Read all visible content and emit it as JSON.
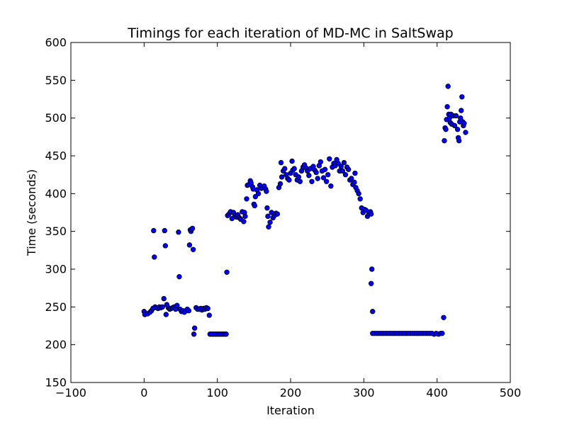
{
  "chart_data": {
    "type": "scatter",
    "title": "Timings for each iteration of MD-MC in SaltSwap",
    "xlabel": "Iteration",
    "ylabel": "Time (seconds)",
    "xlim": [
      -100,
      500
    ],
    "ylim": [
      150,
      600
    ],
    "xticks": [
      -100,
      0,
      100,
      200,
      300,
      400,
      500
    ],
    "yticks": [
      150,
      200,
      250,
      300,
      350,
      400,
      450,
      500,
      550,
      600
    ],
    "xtick_labels": [
      "−100",
      "0",
      "100",
      "200",
      "300",
      "400",
      "500"
    ],
    "ytick_labels": [
      "150",
      "200",
      "250",
      "300",
      "350",
      "400",
      "450",
      "500",
      "550",
      "600"
    ],
    "grid": false,
    "legend": "none",
    "marker_color": "#0000ff",
    "marker_edge_color": "#000000",
    "series": [
      {
        "points": [
          [
            0,
            244
          ],
          [
            1,
            240
          ],
          [
            3,
            241
          ],
          [
            5,
            241
          ],
          [
            8,
            243
          ],
          [
            10,
            245
          ],
          [
            12,
            248
          ],
          [
            13,
            351
          ],
          [
            14,
            316
          ],
          [
            15,
            250
          ],
          [
            17,
            249
          ],
          [
            19,
            248
          ],
          [
            21,
            250
          ],
          [
            23,
            249
          ],
          [
            25,
            250
          ],
          [
            27,
            261
          ],
          [
            28,
            351
          ],
          [
            29,
            331
          ],
          [
            30,
            240
          ],
          [
            31,
            253
          ],
          [
            33,
            249
          ],
          [
            35,
            247
          ],
          [
            37,
            248
          ],
          [
            39,
            249
          ],
          [
            41,
            250
          ],
          [
            43,
            247
          ],
          [
            45,
            252
          ],
          [
            47,
            349
          ],
          [
            48,
            290
          ],
          [
            49,
            247
          ],
          [
            51,
            244
          ],
          [
            53,
            245
          ],
          [
            55,
            243
          ],
          [
            57,
            245
          ],
          [
            59,
            247
          ],
          [
            61,
            245
          ],
          [
            62,
            332
          ],
          [
            63,
            352
          ],
          [
            64,
            350
          ],
          [
            65,
            353
          ],
          [
            66,
            354
          ],
          [
            67,
            326
          ],
          [
            68,
            214
          ],
          [
            69,
            222
          ],
          [
            71,
            249
          ],
          [
            73,
            247
          ],
          [
            75,
            247
          ],
          [
            77,
            248
          ],
          [
            79,
            246
          ],
          [
            81,
            248
          ],
          [
            83,
            247
          ],
          [
            85,
            249
          ],
          [
            87,
            248
          ],
          [
            89,
            239
          ],
          [
            90,
            214
          ],
          [
            92,
            214
          ],
          [
            94,
            214
          ],
          [
            96,
            214
          ],
          [
            98,
            214
          ],
          [
            100,
            214
          ],
          [
            102,
            214
          ],
          [
            104,
            214
          ],
          [
            106,
            214
          ],
          [
            108,
            214
          ],
          [
            110,
            214
          ],
          [
            112,
            214
          ],
          [
            113,
            296
          ],
          [
            114,
            371
          ],
          [
            116,
            373
          ],
          [
            118,
            376
          ],
          [
            120,
            367
          ],
          [
            122,
            375
          ],
          [
            124,
            371
          ],
          [
            126,
            369
          ],
          [
            128,
            372
          ],
          [
            130,
            368
          ],
          [
            132,
            366
          ],
          [
            134,
            376
          ],
          [
            136,
            363
          ],
          [
            137,
            375
          ],
          [
            138,
            370
          ],
          [
            140,
            393
          ],
          [
            141,
            411
          ],
          [
            143,
            412
          ],
          [
            145,
            417
          ],
          [
            146,
            414
          ],
          [
            148,
            409
          ],
          [
            149,
            406
          ],
          [
            150,
            386
          ],
          [
            151,
            384
          ],
          [
            152,
            396
          ],
          [
            154,
            405
          ],
          [
            156,
            400
          ],
          [
            158,
            411
          ],
          [
            160,
            407
          ],
          [
            162,
            408
          ],
          [
            164,
            410
          ],
          [
            166,
            406
          ],
          [
            167,
            403
          ],
          [
            168,
            381
          ],
          [
            169,
            370
          ],
          [
            170,
            356
          ],
          [
            172,
            362
          ],
          [
            174,
            375
          ],
          [
            176,
            368
          ],
          [
            178,
            371
          ],
          [
            180,
            374
          ],
          [
            182,
            373
          ],
          [
            184,
            408
          ],
          [
            186,
            413
          ],
          [
            187,
            441
          ],
          [
            188,
            422
          ],
          [
            190,
            430
          ],
          [
            192,
            433
          ],
          [
            194,
            425
          ],
          [
            196,
            420
          ],
          [
            198,
            418
          ],
          [
            200,
            427
          ],
          [
            202,
            443
          ],
          [
            203,
            431
          ],
          [
            205,
            433
          ],
          [
            207,
            425
          ],
          [
            209,
            418
          ],
          [
            211,
            422
          ],
          [
            213,
            416
          ],
          [
            215,
            430
          ],
          [
            217,
            435
          ],
          [
            219,
            438
          ],
          [
            221,
            434
          ],
          [
            223,
            430
          ],
          [
            225,
            424
          ],
          [
            227,
            433
          ],
          [
            229,
            416
          ],
          [
            231,
            436
          ],
          [
            233,
            431
          ],
          [
            235,
            428
          ],
          [
            237,
            420
          ],
          [
            239,
            437
          ],
          [
            241,
            442
          ],
          [
            243,
            430
          ],
          [
            245,
            421
          ],
          [
            247,
            432
          ],
          [
            249,
            416
          ],
          [
            251,
            425
          ],
          [
            253,
            446
          ],
          [
            255,
            410
          ],
          [
            257,
            435
          ],
          [
            259,
            440
          ],
          [
            261,
            437
          ],
          [
            263,
            445
          ],
          [
            265,
            440
          ],
          [
            267,
            430
          ],
          [
            269,
            436
          ],
          [
            271,
            430
          ],
          [
            273,
            441
          ],
          [
            275,
            425
          ],
          [
            277,
            435
          ],
          [
            279,
            432
          ],
          [
            281,
            418
          ],
          [
            283,
            420
          ],
          [
            285,
            412
          ],
          [
            287,
            415
          ],
          [
            288,
            427
          ],
          [
            289,
            408
          ],
          [
            291,
            404
          ],
          [
            293,
            400
          ],
          [
            295,
            393
          ],
          [
            297,
            381
          ],
          [
            299,
            375
          ],
          [
            301,
            379
          ],
          [
            303,
            378
          ],
          [
            305,
            370
          ],
          [
            307,
            373
          ],
          [
            309,
            376
          ],
          [
            310,
            373
          ],
          [
            310,
            281
          ],
          [
            311,
            300
          ],
          [
            312,
            244
          ],
          [
            312,
            215
          ],
          [
            315,
            215
          ],
          [
            318,
            215
          ],
          [
            321,
            215
          ],
          [
            324,
            215
          ],
          [
            327,
            215
          ],
          [
            330,
            215
          ],
          [
            333,
            215
          ],
          [
            336,
            215
          ],
          [
            339,
            215
          ],
          [
            342,
            215
          ],
          [
            345,
            215
          ],
          [
            348,
            215
          ],
          [
            351,
            215
          ],
          [
            354,
            215
          ],
          [
            357,
            215
          ],
          [
            360,
            215
          ],
          [
            363,
            215
          ],
          [
            366,
            215
          ],
          [
            369,
            215
          ],
          [
            372,
            215
          ],
          [
            375,
            215
          ],
          [
            378,
            215
          ],
          [
            381,
            215
          ],
          [
            384,
            215
          ],
          [
            387,
            215
          ],
          [
            390,
            215
          ],
          [
            393,
            215
          ],
          [
            396,
            214
          ],
          [
            399,
            215
          ],
          [
            402,
            214
          ],
          [
            405,
            215
          ],
          [
            407,
            215
          ],
          [
            409,
            236
          ],
          [
            410,
            470
          ],
          [
            411,
            487
          ],
          [
            412,
            485
          ],
          [
            413,
            498
          ],
          [
            414,
            515
          ],
          [
            415,
            542
          ],
          [
            416,
            505
          ],
          [
            417,
            500
          ],
          [
            418,
            494
          ],
          [
            419,
            505
          ],
          [
            420,
            492
          ],
          [
            422,
            503
          ],
          [
            424,
            490
          ],
          [
            426,
            503
          ],
          [
            428,
            485
          ],
          [
            429,
            474
          ],
          [
            430,
            470
          ],
          [
            431,
            495
          ],
          [
            432,
            500
          ],
          [
            433,
            510
          ],
          [
            434,
            528
          ],
          [
            435,
            495
          ],
          [
            436,
            490
          ],
          [
            437,
            493
          ],
          [
            439,
            481
          ]
        ]
      }
    ]
  }
}
